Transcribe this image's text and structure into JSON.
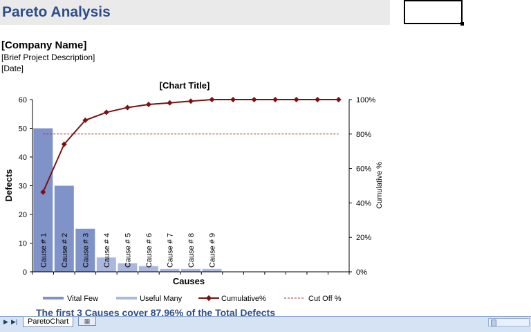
{
  "header": {
    "title": "Pareto Analysis",
    "company": "[Company Name]",
    "project": "[Brief Project Description]",
    "date": "[Date]"
  },
  "summary": "The first 3 Causes cover 87.96% of the Total Defects",
  "sheet_tabs": {
    "active": "ParetoChart"
  },
  "colors": {
    "title": "#2e4d87",
    "vital_few": "#7f93c9",
    "useful_many": "#aab8df",
    "cumulative": "#7a1111",
    "cutoff": "#a0322a"
  },
  "chart_data": {
    "type": "bar",
    "title": "[Chart Title]",
    "xlabel": "Causes",
    "ylabel": "Defects",
    "y2label": "Cumulative %",
    "ylim": [
      0,
      60
    ],
    "y2lim": [
      0,
      100
    ],
    "yticks": [
      "0",
      "10",
      "20",
      "30",
      "40",
      "50",
      "60"
    ],
    "y2ticks": [
      "0%",
      "20%",
      "40%",
      "60%",
      "80%",
      "100%"
    ],
    "categories": [
      "Cause # 1",
      "Cause # 2",
      "Cause # 3",
      "Cause # 4",
      "Cause # 5",
      "Cause # 6",
      "Cause # 7",
      "Cause # 8",
      "Cause # 9",
      "",
      "",
      "",
      "",
      "",
      ""
    ],
    "series": [
      {
        "name": "Vital Few",
        "type": "bar",
        "values": [
          50,
          30,
          15,
          0,
          0,
          0,
          0,
          0,
          0,
          0,
          0,
          0,
          0,
          0,
          0
        ]
      },
      {
        "name": "Useful Many",
        "type": "bar",
        "values": [
          0,
          0,
          0,
          5,
          3,
          2,
          1,
          1,
          1,
          0,
          0,
          0,
          0,
          0,
          0
        ]
      },
      {
        "name": "Cumulative%",
        "type": "line",
        "axis": "secondary",
        "values": [
          46.3,
          74.1,
          88.0,
          92.6,
          95.4,
          97.2,
          98.1,
          99.1,
          100,
          100,
          100,
          100,
          100,
          100,
          100
        ]
      },
      {
        "name": "Cut Off %",
        "type": "line",
        "axis": "secondary",
        "style": "dashed",
        "values": [
          80,
          80,
          80,
          80,
          80,
          80,
          80,
          80,
          80,
          80,
          80,
          80,
          80,
          80,
          80
        ]
      }
    ],
    "grid": false,
    "legend": "bottom"
  }
}
